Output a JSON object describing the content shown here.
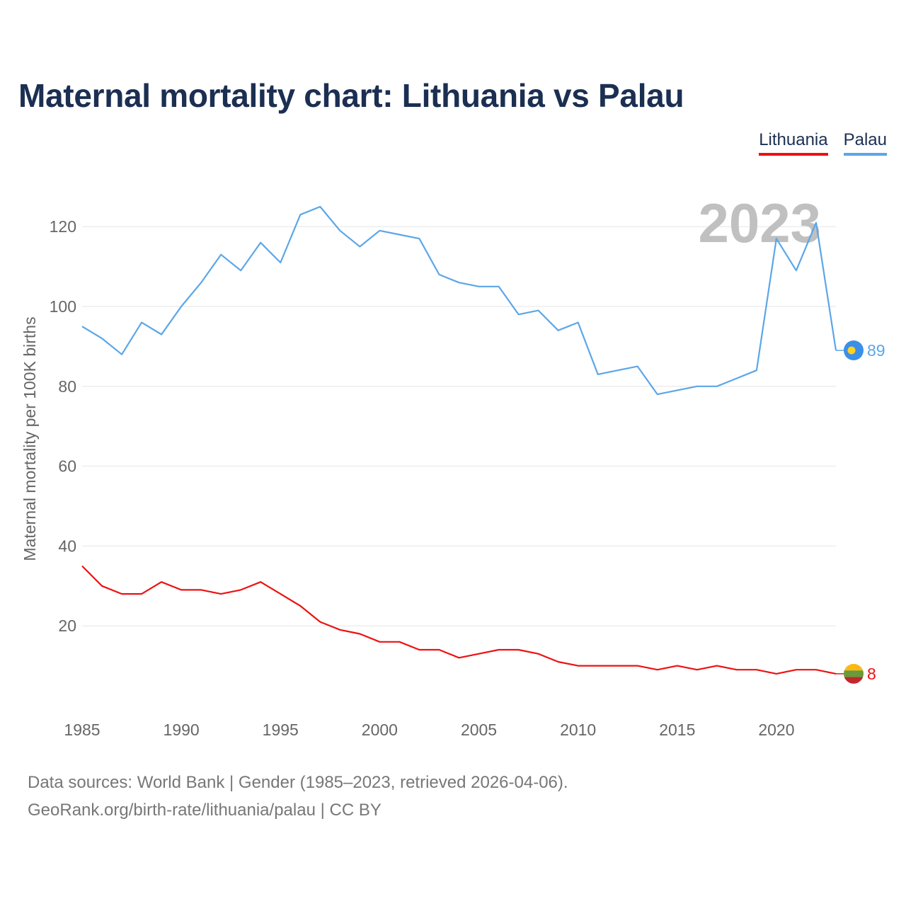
{
  "title": "Maternal mortality chart: Lithuania vs Palau",
  "legend": [
    {
      "label": "Lithuania",
      "color": "#ee1111"
    },
    {
      "label": "Palau",
      "color": "#5ba6e8"
    }
  ],
  "year_watermark": "2023",
  "chart_data": {
    "type": "line",
    "title": "Maternal mortality chart: Lithuania vs Palau",
    "xlabel": "",
    "ylabel": "Maternal mortality per 100K births",
    "xlim": [
      1985,
      2023
    ],
    "ylim": [
      0,
      130
    ],
    "yticks": [
      20,
      40,
      60,
      80,
      100,
      120
    ],
    "xticks": [
      1985,
      1990,
      1995,
      2000,
      2005,
      2010,
      2015,
      2020
    ],
    "grid": true,
    "legend_position": "top-right",
    "x": [
      1985,
      1986,
      1987,
      1988,
      1989,
      1990,
      1991,
      1992,
      1993,
      1994,
      1995,
      1996,
      1997,
      1998,
      1999,
      2000,
      2001,
      2002,
      2003,
      2004,
      2005,
      2006,
      2007,
      2008,
      2009,
      2010,
      2011,
      2012,
      2013,
      2014,
      2015,
      2016,
      2017,
      2018,
      2019,
      2020,
      2021,
      2022,
      2023
    ],
    "series": [
      {
        "name": "Palau",
        "color": "#5ba6e8",
        "end_label": "89",
        "values": [
          95,
          92,
          88,
          96,
          93,
          100,
          106,
          113,
          109,
          116,
          111,
          123,
          125,
          119,
          115,
          119,
          118,
          117,
          108,
          106,
          105,
          105,
          98,
          99,
          94,
          96,
          83,
          84,
          85,
          78,
          79,
          80,
          80,
          82,
          84,
          117,
          109,
          121,
          89
        ]
      },
      {
        "name": "Lithuania",
        "color": "#ee1111",
        "end_label": "8",
        "values": [
          35,
          30,
          28,
          28,
          31,
          29,
          29,
          28,
          29,
          31,
          28,
          25,
          21,
          19,
          18,
          16,
          16,
          14,
          14,
          12,
          13,
          14,
          14,
          13,
          11,
          10,
          10,
          10,
          10,
          9,
          10,
          9,
          10,
          9,
          9,
          8,
          9,
          9,
          8
        ]
      }
    ]
  },
  "footer": {
    "line1": "Data sources: World Bank | Gender (1985–2023, retrieved 2026-04-06).",
    "line2": "GeoRank.org/birth-rate/lithuania/palau | CC BY"
  }
}
